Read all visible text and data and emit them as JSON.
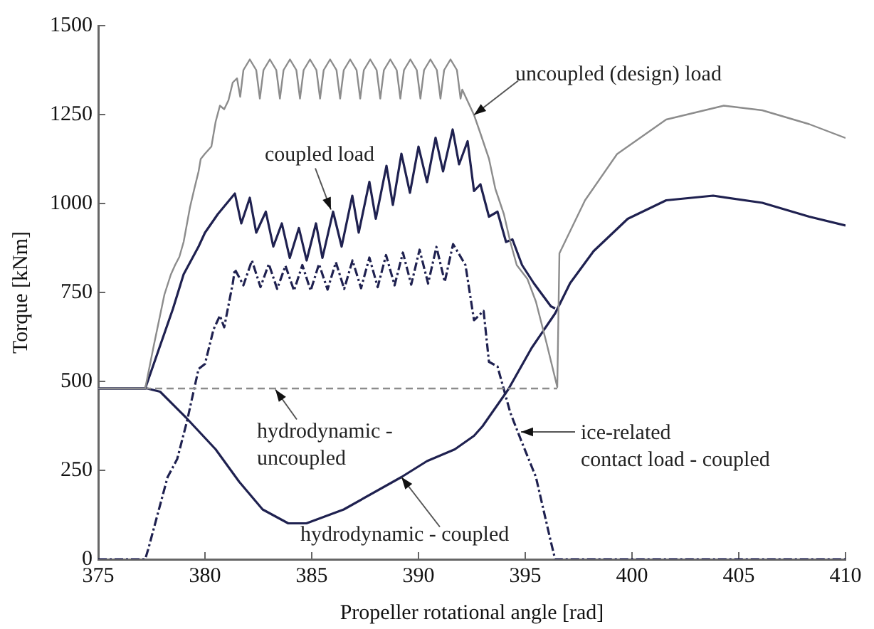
{
  "chart_data": {
    "type": "line",
    "xlabel": "Propeller rotational angle [rad]",
    "ylabel": "Torque [kNm]",
    "xlim": [
      375,
      410
    ],
    "xticks": [
      375,
      380,
      385,
      390,
      395,
      400,
      405,
      410
    ],
    "ylim": [
      0,
      1500
    ],
    "yticks": [
      0,
      250,
      500,
      750,
      1000,
      1250,
      1500
    ],
    "grid": false,
    "legend": false,
    "marker": "none",
    "series": [
      {
        "color": "#8c8c8c",
        "line_style": "solid",
        "x": [
          375,
          377.2,
          377.6,
          378.1,
          378.4,
          378.6,
          378.8,
          379.0,
          379.3,
          379.5,
          379.7,
          379.8,
          380.0,
          380.3,
          380.5,
          380.7,
          380.9,
          381.1,
          381.3,
          381.5,
          381.65,
          381.8,
          382.1,
          382.4,
          382.57,
          382.74,
          383.04,
          383.34,
          383.51,
          383.68,
          383.98,
          384.28,
          384.45,
          384.62,
          384.92,
          385.22,
          385.39,
          385.56,
          385.86,
          386.16,
          386.33,
          386.5,
          386.8,
          387.1,
          387.27,
          387.44,
          387.74,
          388.04,
          388.21,
          388.38,
          388.68,
          388.98,
          389.15,
          389.32,
          389.62,
          389.92,
          390.09,
          390.26,
          390.56,
          390.86,
          391.03,
          391.2,
          391.5,
          391.8,
          391.97,
          392.05,
          392.6,
          392.9,
          393.3,
          393.6,
          394.0,
          394.3,
          394.6,
          395.1,
          395.5,
          396.0,
          396.5,
          396.6,
          397.8,
          399.3,
          401.6,
          404.3,
          406.1,
          408.3,
          410
        ],
        "values": [
          480,
          480,
          600,
          744,
          800,
          827,
          850,
          892,
          990,
          1041,
          1090,
          1125,
          1140,
          1160,
          1230,
          1275,
          1265,
          1290,
          1340,
          1352,
          1300,
          1375,
          1405,
          1375,
          1295,
          1375,
          1405,
          1375,
          1295,
          1375,
          1405,
          1375,
          1295,
          1375,
          1405,
          1375,
          1295,
          1375,
          1405,
          1375,
          1295,
          1375,
          1405,
          1375,
          1295,
          1375,
          1405,
          1375,
          1295,
          1375,
          1405,
          1375,
          1295,
          1375,
          1405,
          1375,
          1295,
          1375,
          1405,
          1375,
          1295,
          1375,
          1405,
          1375,
          1295,
          1320,
          1249,
          1197,
          1126,
          1041,
          970,
          892,
          827,
          788,
          724,
          607,
          484,
          860,
          1009,
          1139,
          1236,
          1275,
          1262,
          1223,
          1184
        ]
      },
      {
        "color": "#1f2150",
        "line_style": "solid",
        "x": [
          375,
          377.2,
          378.5,
          379.0,
          379.7,
          380.0,
          380.6,
          381.4,
          381.7,
          382.1,
          382.4,
          382.85,
          383.2,
          383.6,
          383.97,
          384.4,
          384.76,
          385.2,
          385.5,
          386.0,
          386.4,
          386.9,
          387.2,
          387.7,
          388.0,
          388.5,
          388.8,
          389.2,
          389.6,
          390.0,
          390.4,
          390.8,
          391.15,
          391.6,
          391.9,
          392.3,
          392.6,
          392.9,
          393.3,
          393.7,
          394.1,
          394.4,
          394.85,
          395.4,
          396.2,
          396.4
        ],
        "values": [
          480,
          480,
          704,
          801,
          879,
          918,
          970,
          1028,
          944,
          1016,
          918,
          977,
          879,
          944,
          847,
          931,
          840,
          944,
          847,
          977,
          879,
          1022,
          918,
          1061,
          957,
          1106,
          996,
          1140,
          1030,
          1160,
          1060,
          1185,
          1090,
          1208,
          1110,
          1175,
          1035,
          1054,
          963,
          977,
          892,
          899,
          827,
          776,
          711,
          705
        ]
      },
      {
        "color": "#8c8c8c",
        "line_style": "dashed",
        "x": [
          375,
          396.5
        ],
        "values": [
          480,
          480
        ]
      },
      {
        "color": "#1f2150",
        "line_style": "solid",
        "x": [
          375,
          377.3,
          377.9,
          379.1,
          380.5,
          381.6,
          382.7,
          383.9,
          384.75,
          386.5,
          389.2,
          390.4,
          391.7,
          392.6,
          393.0,
          394.2,
          395.3,
          396.4,
          397.1,
          398.2,
          399.8,
          401.6,
          403.8,
          406.1,
          408.3,
          410
        ],
        "values": [
          480,
          480,
          471,
          399,
          309,
          218,
          140,
          101,
          101,
          140,
          231,
          276,
          309,
          347,
          374,
          477,
          594,
          691,
          776,
          866,
          957,
          1009,
          1022,
          1002,
          963,
          938
        ]
      },
      {
        "color": "#1f2150",
        "line_style": "dashdot",
        "x": [
          375,
          377.2,
          377.35,
          378.25,
          378.7,
          379.15,
          379.7,
          380.0,
          380.4,
          380.7,
          380.9,
          381.3,
          381.4,
          381.8,
          382.2,
          382.6,
          382.99,
          383.38,
          383.77,
          384.17,
          384.56,
          384.95,
          385.34,
          385.74,
          386.13,
          386.52,
          386.91,
          387.31,
          387.7,
          388.09,
          388.48,
          388.88,
          389.27,
          389.66,
          390.05,
          390.45,
          390.84,
          391.23,
          391.62,
          392.2,
          392.6,
          393.05,
          393.3,
          393.7,
          394.3,
          394.8,
          395.5,
          396.2,
          396.4,
          410
        ],
        "values": [
          0,
          0,
          30,
          231,
          282,
          386,
          535,
          549,
          646,
          685,
          652,
          775,
          815,
          770,
          840,
          765,
          830,
          760,
          825,
          755,
          827,
          755,
          830,
          758,
          835,
          760,
          840,
          762,
          848,
          765,
          855,
          770,
          862,
          772,
          870,
          775,
          878,
          780,
          886,
          827,
          672,
          698,
          555,
          542,
          412,
          335,
          231,
          49,
          0,
          0
        ]
      }
    ],
    "annotations": [
      {
        "text": "uncoupled (design) load",
        "x": 392.6,
        "y": 1249
      },
      {
        "text": "coupled load",
        "x": 385.9,
        "y": 983
      },
      {
        "text": "hydrodynamic -\nuncoupled",
        "x": 383.3,
        "y": 477
      },
      {
        "text": "hydrodynamic - coupled",
        "x": 389.2,
        "y": 231
      },
      {
        "text": "ice-related\ncontact load - coupled",
        "x": 394.8,
        "y": 358
      }
    ]
  }
}
